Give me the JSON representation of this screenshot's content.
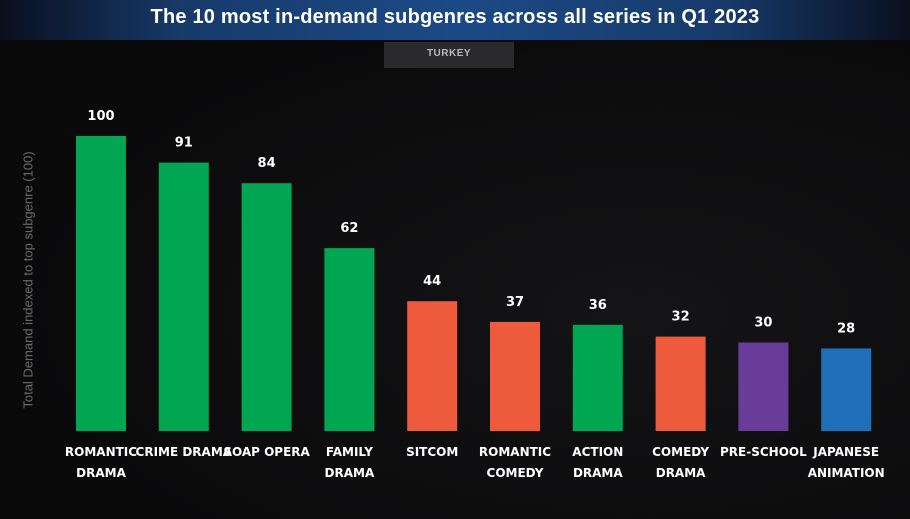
{
  "title": "The 10 most in-demand subgenres across all series in Q1 2023",
  "filter": {
    "label": "TURKEY"
  },
  "chart_data": {
    "type": "bar",
    "title": "The 10 most in-demand subgenres across all series in Q1 2023",
    "ylabel": "Total Demand indexed to top subgenre (100)",
    "xlabel": "",
    "ylim": [
      0,
      100
    ],
    "grid": false,
    "categories": [
      [
        "ROMANTIC",
        "DRAMA"
      ],
      [
        "CRIME DRAMA"
      ],
      [
        "SOAP OPERA"
      ],
      [
        "FAMILY",
        "DRAMA"
      ],
      [
        "SITCOM"
      ],
      [
        "ROMANTIC",
        "COMEDY"
      ],
      [
        "ACTION",
        "DRAMA"
      ],
      [
        "COMEDY",
        "DRAMA"
      ],
      [
        "PRE-SCHOOL"
      ],
      [
        "JAPANESE",
        "ANIMATION"
      ]
    ],
    "values": [
      100,
      91,
      84,
      62,
      44,
      37,
      36,
      32,
      30,
      28
    ],
    "colors": [
      "#00a651",
      "#00a651",
      "#00a651",
      "#00a651",
      "#ee5a3c",
      "#ee5a3c",
      "#00a651",
      "#ee5a3c",
      "#6a3c9a",
      "#1e6fb8"
    ]
  }
}
